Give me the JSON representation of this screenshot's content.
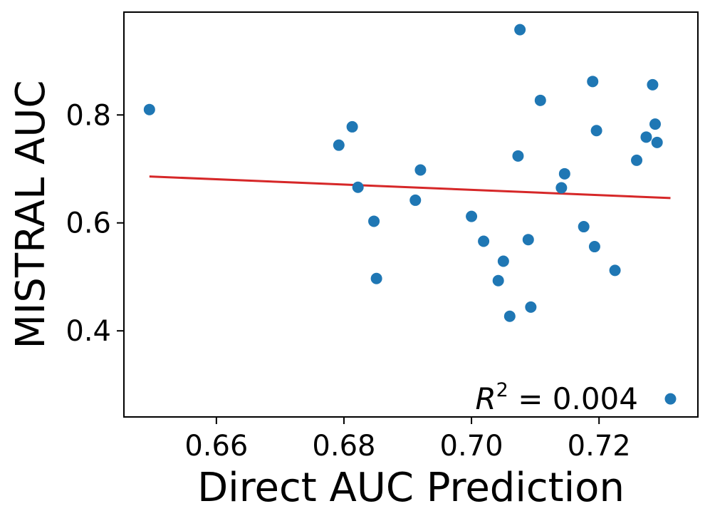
{
  "chart_data": {
    "type": "scatter",
    "title": "",
    "xlabel": "Direct AUC Prediction",
    "ylabel": "MISTRAL AUC",
    "xlim": [
      0.6455,
      0.7355
    ],
    "ylim": [
      0.2405,
      0.9905
    ],
    "xticks": [
      0.66,
      0.68,
      0.7,
      0.72
    ],
    "xtick_labels": [
      "0.66",
      "0.68",
      "0.70",
      "0.72"
    ],
    "yticks": [
      0.4,
      0.6,
      0.8
    ],
    "ytick_labels": [
      "0.4",
      "0.6",
      "0.8"
    ],
    "grid": false,
    "marker_color": "#1f77b4",
    "fit_line_color": "#d62728",
    "points": [
      {
        "x": 0.6495,
        "y": 0.81
      },
      {
        "x": 0.6792,
        "y": 0.744
      },
      {
        "x": 0.6813,
        "y": 0.778
      },
      {
        "x": 0.6822,
        "y": 0.666
      },
      {
        "x": 0.6847,
        "y": 0.603
      },
      {
        "x": 0.6851,
        "y": 0.497
      },
      {
        "x": 0.6912,
        "y": 0.642
      },
      {
        "x": 0.692,
        "y": 0.698
      },
      {
        "x": 0.7,
        "y": 0.612
      },
      {
        "x": 0.7019,
        "y": 0.566
      },
      {
        "x": 0.7042,
        "y": 0.493
      },
      {
        "x": 0.705,
        "y": 0.529
      },
      {
        "x": 0.706,
        "y": 0.427
      },
      {
        "x": 0.7073,
        "y": 0.724
      },
      {
        "x": 0.7076,
        "y": 0.958
      },
      {
        "x": 0.7089,
        "y": 0.569
      },
      {
        "x": 0.7093,
        "y": 0.444
      },
      {
        "x": 0.7108,
        "y": 0.827
      },
      {
        "x": 0.7141,
        "y": 0.665
      },
      {
        "x": 0.7146,
        "y": 0.691
      },
      {
        "x": 0.7176,
        "y": 0.593
      },
      {
        "x": 0.719,
        "y": 0.862
      },
      {
        "x": 0.7193,
        "y": 0.556
      },
      {
        "x": 0.7196,
        "y": 0.771
      },
      {
        "x": 0.7225,
        "y": 0.512
      },
      {
        "x": 0.7259,
        "y": 0.716
      },
      {
        "x": 0.7274,
        "y": 0.759
      },
      {
        "x": 0.7284,
        "y": 0.856
      },
      {
        "x": 0.7288,
        "y": 0.783
      },
      {
        "x": 0.7291,
        "y": 0.749
      },
      {
        "x": 0.7312,
        "y": 0.274
      }
    ],
    "fit_line": {
      "x": [
        0.6495,
        0.7312
      ],
      "y": [
        0.686,
        0.646
      ]
    },
    "annotation": {
      "base": "R",
      "sup": "2",
      "rest": " = 0.004"
    }
  }
}
